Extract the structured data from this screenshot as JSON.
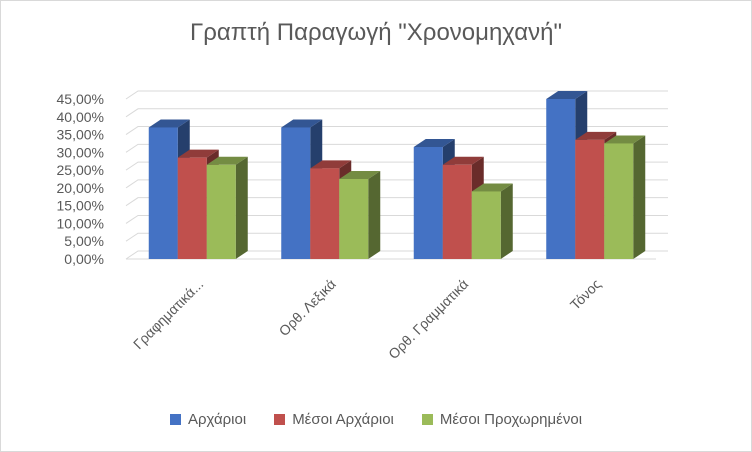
{
  "chart_data": {
    "type": "bar",
    "title": "Γραπτή Παραγωγή \"Χρονομηχανή\"",
    "categories": [
      "Γραφηματικά...",
      "Ορθ. Λεξικά",
      "Ορθ. Γραμματικά",
      "Τόνος"
    ],
    "series": [
      {
        "name": "Αρχάριοι",
        "color": "#4472C4",
        "values": [
          0.37,
          0.37,
          0.315,
          0.45
        ]
      },
      {
        "name": "Μέσοι Αρχάριοι",
        "color": "#C0504D",
        "values": [
          0.285,
          0.255,
          0.265,
          0.335
        ]
      },
      {
        "name": "Μέσοι Προχωρημένοι",
        "color": "#9BBB59",
        "values": [
          0.265,
          0.225,
          0.19,
          0.325
        ]
      }
    ],
    "ylim": [
      0,
      0.45
    ],
    "ytick_step": 0.05,
    "yticks": [
      "0,00%",
      "5,00%",
      "10,00%",
      "15,00%",
      "20,00%",
      "25,00%",
      "30,00%",
      "35,00%",
      "40,00%",
      "45,00%"
    ],
    "xlabel": "",
    "ylabel": "",
    "grid": true,
    "legend_position": "bottom"
  }
}
